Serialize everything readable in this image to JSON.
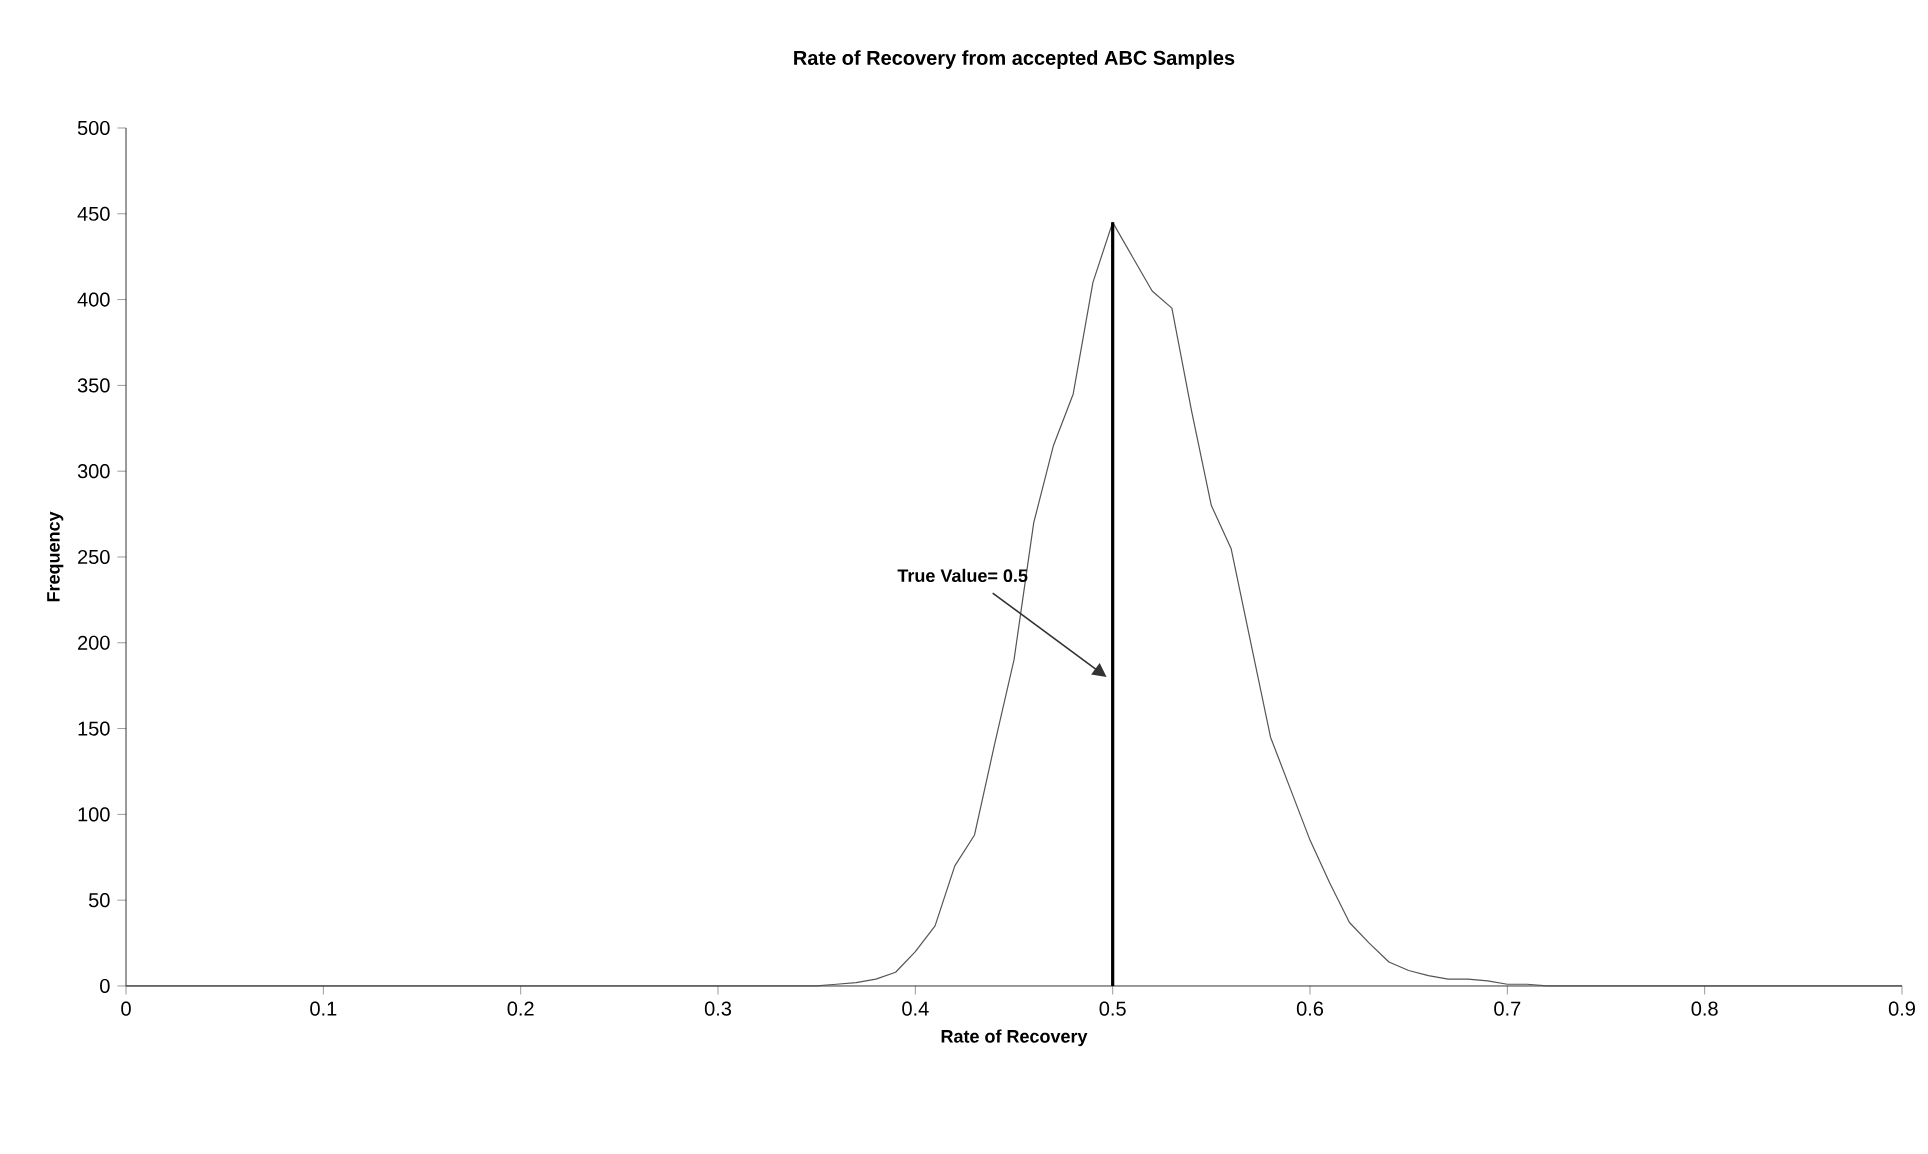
{
  "chart_data": {
    "type": "line",
    "title": "Rate of Recovery from accepted ABC Samples",
    "xlabel": "Rate of Recovery",
    "ylabel": "Frequency",
    "series": [
      {
        "color": "#555555",
        "x": [
          0,
          0.35,
          0.36,
          0.37,
          0.38,
          0.39,
          0.4,
          0.41,
          0.42,
          0.43,
          0.44,
          0.45,
          0.46,
          0.47,
          0.48,
          0.49,
          0.5,
          0.51,
          0.52,
          0.53,
          0.54,
          0.55,
          0.56,
          0.57,
          0.58,
          0.59,
          0.6,
          0.61,
          0.62,
          0.63,
          0.64,
          0.65,
          0.66,
          0.67,
          0.68,
          0.69,
          0.7,
          0.71,
          0.72,
          0.9
        ],
        "values": [
          0,
          0,
          1,
          2,
          4,
          8,
          20,
          35,
          70,
          88,
          140,
          190,
          270,
          315,
          345,
          410,
          445,
          425,
          405,
          395,
          335,
          280,
          255,
          200,
          145,
          115,
          85,
          60,
          37,
          25,
          14,
          9,
          6,
          4,
          4,
          3,
          1,
          1,
          0,
          0
        ]
      }
    ],
    "ref_lines": [
      {
        "axis": "x",
        "value": 0.5,
        "label": "True Value= 0.5",
        "color": "#000000"
      }
    ],
    "xlim": [
      0,
      0.9
    ],
    "ylim": [
      0,
      500
    ],
    "xticks": [
      0,
      0.1,
      0.2,
      0.3,
      0.4,
      0.5,
      0.6,
      0.7,
      0.8,
      0.9
    ],
    "yticks": [
      0,
      50,
      100,
      150,
      200,
      250,
      300,
      350,
      400,
      450,
      500
    ],
    "marker": "none",
    "line_style": "solid"
  }
}
